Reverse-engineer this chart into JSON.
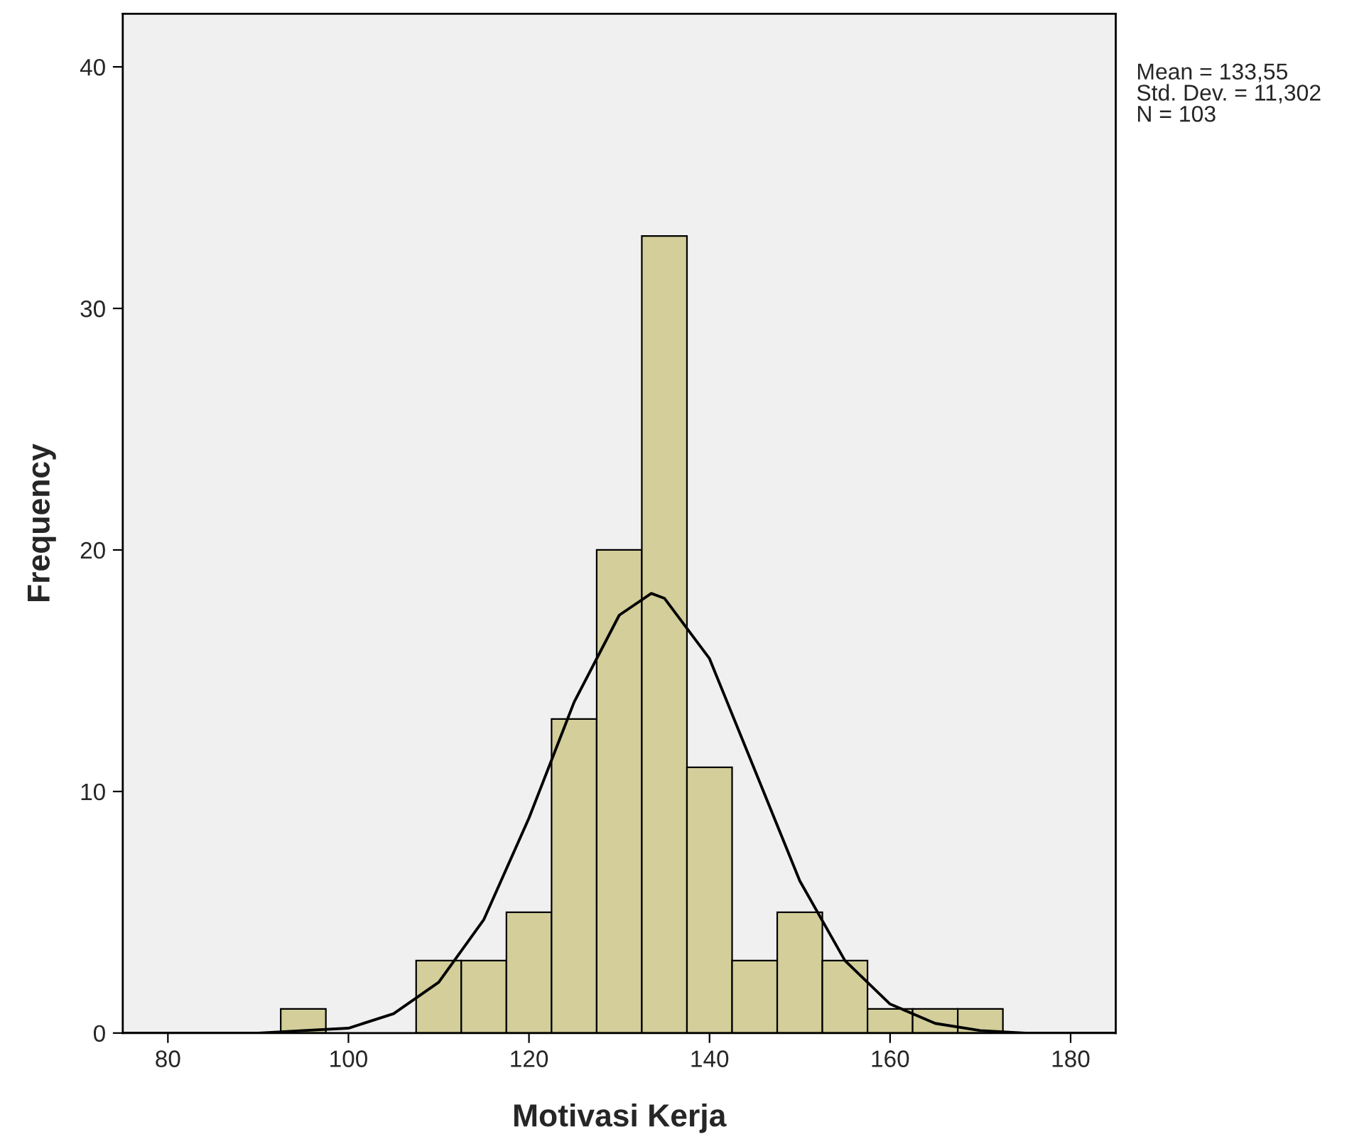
{
  "chart_data": {
    "type": "histogram",
    "xlabel": "Motivasi Kerja",
    "ylabel": "Frequency",
    "bins": [
      92.5,
      97.5,
      102.5,
      107.5,
      112.5,
      117.5,
      122.5,
      127.5,
      132.5,
      137.5,
      142.5,
      147.5,
      152.5,
      157.5,
      162.5,
      167.5,
      172.5
    ],
    "values": [
      1,
      0,
      0,
      3,
      3,
      5,
      13,
      20,
      33,
      11,
      3,
      5,
      3,
      1,
      1,
      1
    ],
    "color": "#d3ce9a",
    "series": [
      {
        "type": "line",
        "color": "#000000",
        "x": [
          75,
          80,
          85,
          90,
          95,
          100,
          105,
          110,
          115,
          120,
          125,
          130,
          133.55,
          135,
          140,
          145,
          150,
          155,
          160,
          165,
          170,
          175,
          180,
          185
        ],
        "values": [
          0,
          0,
          0,
          0,
          0.1,
          0.2,
          0.8,
          2.1,
          4.7,
          8.9,
          13.7,
          17.3,
          18.2,
          18.0,
          15.5,
          10.9,
          6.3,
          3.0,
          1.2,
          0.4,
          0.1,
          0,
          0,
          0
        ]
      }
    ],
    "xlim": [
      75,
      185
    ],
    "ylim": [
      0,
      42.2
    ],
    "xticks": [
      80,
      100,
      120,
      140,
      160,
      180
    ],
    "yticks": [
      0,
      10,
      20,
      30,
      40
    ],
    "grid": false,
    "annotations": [
      "Mean = 133,55\nStd. Dev. = 11,302\nN = 103"
    ]
  }
}
